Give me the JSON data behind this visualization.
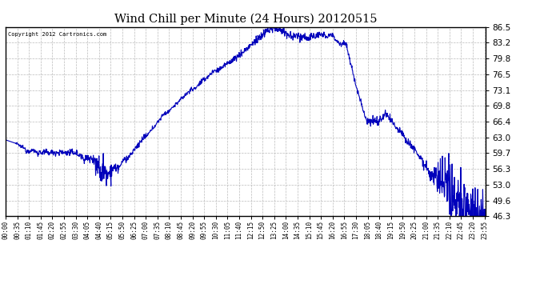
{
  "title": "Wind Chill per Minute (24 Hours) 20120515",
  "copyright": "Copyright 2012 Cartronics.com",
  "line_color": "#0000bb",
  "bg_color": "#ffffff",
  "grid_color": "#bbbbbb",
  "yticks": [
    46.3,
    49.6,
    53.0,
    56.3,
    59.7,
    63.0,
    66.4,
    69.8,
    73.1,
    76.5,
    79.8,
    83.2,
    86.5
  ],
  "ymin": 46.3,
  "ymax": 86.5,
  "xlabel_fontsize": 5.5,
  "ylabel_fontsize": 7.5,
  "title_fontsize": 10.5
}
